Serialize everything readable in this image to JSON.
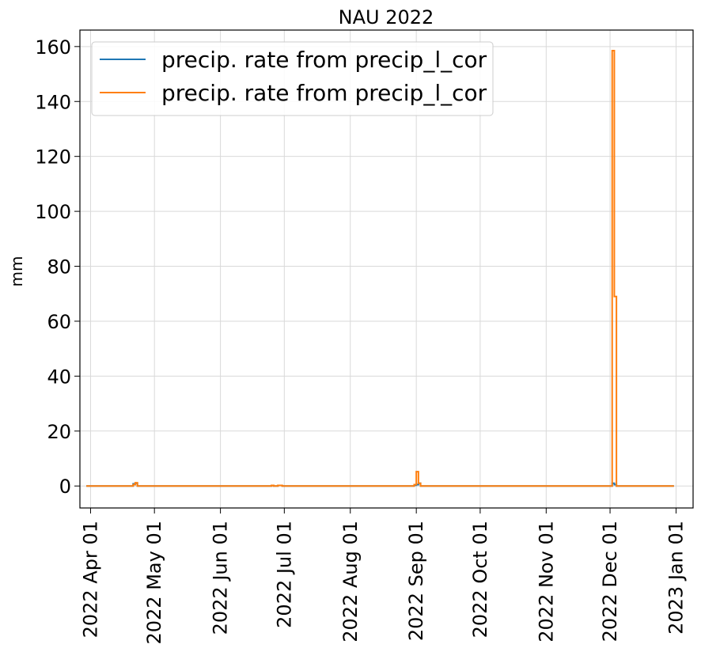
{
  "chart_data": {
    "type": "line",
    "title": "NAU 2022",
    "xlabel": "",
    "ylabel": "mm",
    "xlim": [
      "2022-03-27",
      "2023-01-09"
    ],
    "ylim": [
      -8,
      166
    ],
    "grid": true,
    "legend_position": "top-left",
    "x_ticks": [
      {
        "date": "2022-04-01",
        "label": "2022 Apr 01"
      },
      {
        "date": "2022-05-01",
        "label": "2022 May 01"
      },
      {
        "date": "2022-06-01",
        "label": "2022 Jun 01"
      },
      {
        "date": "2022-07-01",
        "label": "2022 Jul 01"
      },
      {
        "date": "2022-08-01",
        "label": "2022 Aug 01"
      },
      {
        "date": "2022-09-01",
        "label": "2022 Sep 01"
      },
      {
        "date": "2022-10-01",
        "label": "2022 Oct 01"
      },
      {
        "date": "2022-11-01",
        "label": "2022 Nov 01"
      },
      {
        "date": "2022-12-01",
        "label": "2022 Dec 01"
      },
      {
        "date": "2023-01-01",
        "label": "2023 Jan 01"
      }
    ],
    "y_ticks": [
      0,
      20,
      40,
      60,
      80,
      100,
      120,
      140,
      160
    ],
    "series": [
      {
        "name": "precip. rate from precip_l_cor",
        "color": "#1f77b4",
        "x": [
          "2022-03-30",
          "2022-04-21",
          "2022-04-22",
          "2022-04-23",
          "2022-06-25",
          "2022-06-26",
          "2022-06-28",
          "2022-06-30",
          "2022-08-31",
          "2022-09-01",
          "2022-09-02",
          "2022-09-03",
          "2022-12-01",
          "2022-12-02",
          "2022-12-03",
          "2022-12-04",
          "2022-12-31"
        ],
        "y": [
          0,
          0.8,
          1.0,
          0,
          0.2,
          0,
          0.2,
          0,
          0.3,
          0.5,
          1.0,
          0,
          0,
          1.0,
          0.5,
          0,
          0
        ]
      },
      {
        "name": "precip. rate from precip_l_cor",
        "color": "#ff7f0e",
        "x": [
          "2022-03-30",
          "2022-04-21",
          "2022-04-22",
          "2022-04-23",
          "2022-06-25",
          "2022-06-26",
          "2022-06-28",
          "2022-06-30",
          "2022-08-31",
          "2022-09-01",
          "2022-09-02",
          "2022-09-03",
          "2022-12-01",
          "2022-12-02",
          "2022-12-03",
          "2022-12-04",
          "2022-12-31"
        ],
        "y": [
          0,
          0.5,
          1.2,
          0,
          0.2,
          0,
          0.2,
          0,
          0.5,
          5.2,
          1.0,
          0,
          0,
          158.5,
          69.0,
          0,
          0
        ]
      }
    ]
  }
}
